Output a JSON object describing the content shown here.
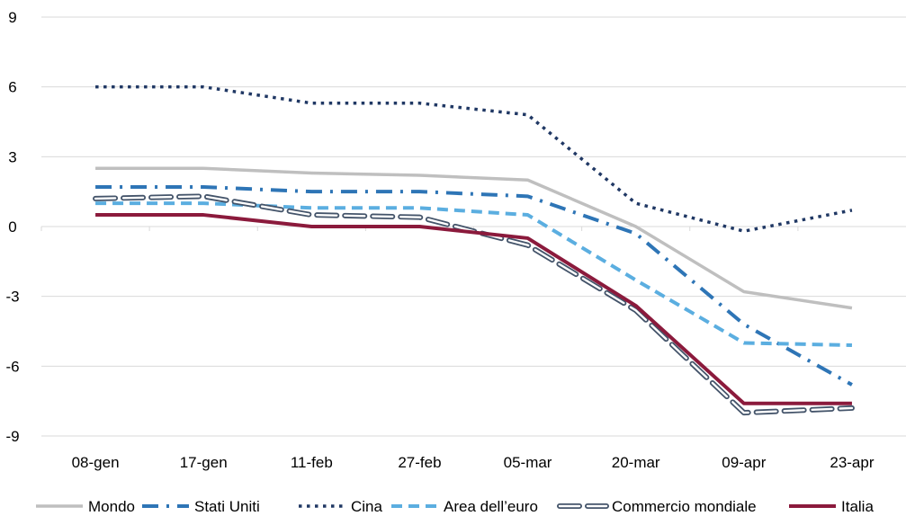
{
  "chart_data": {
    "type": "line",
    "title": "",
    "xlabel": "",
    "ylabel": "",
    "categories": [
      "08-gen",
      "17-gen",
      "11-feb",
      "27-feb",
      "05-mar",
      "20-mar",
      "09-apr",
      "23-apr"
    ],
    "ylim": [
      -9,
      9
    ],
    "yticks": [
      9,
      6,
      3,
      0,
      -3,
      -6,
      -9
    ],
    "grid": true,
    "legend_position": "bottom",
    "series": [
      {
        "name": "Mondo",
        "style": "solid",
        "color": "#bfbfbf",
        "values": [
          2.5,
          2.5,
          2.3,
          2.2,
          2.0,
          0.0,
          -2.8,
          -3.5
        ]
      },
      {
        "name": "Stati Uniti",
        "style": "dash-dot",
        "color": "#2e75b6",
        "values": [
          1.7,
          1.7,
          1.5,
          1.5,
          1.3,
          -0.3,
          -4.2,
          -6.8
        ]
      },
      {
        "name": "Cina",
        "style": "dotted",
        "color": "#203864",
        "values": [
          6.0,
          6.0,
          5.3,
          5.3,
          4.8,
          1.0,
          -0.2,
          0.7
        ]
      },
      {
        "name": "Area dell’euro",
        "style": "dashed",
        "color": "#5baee0",
        "values": [
          1.0,
          1.0,
          0.8,
          0.8,
          0.5,
          -2.3,
          -5.0,
          -5.1
        ]
      },
      {
        "name": "Commercio mondiale",
        "style": "double-dashed",
        "color": "#44546a",
        "values": [
          1.2,
          1.3,
          0.5,
          0.4,
          -0.8,
          -3.6,
          -8.0,
          -7.8
        ]
      },
      {
        "name": "Italia",
        "style": "solid",
        "color": "#8b1a3c",
        "values": [
          0.5,
          0.5,
          0.0,
          0.0,
          -0.5,
          -3.4,
          -7.6,
          -7.6
        ]
      }
    ]
  }
}
